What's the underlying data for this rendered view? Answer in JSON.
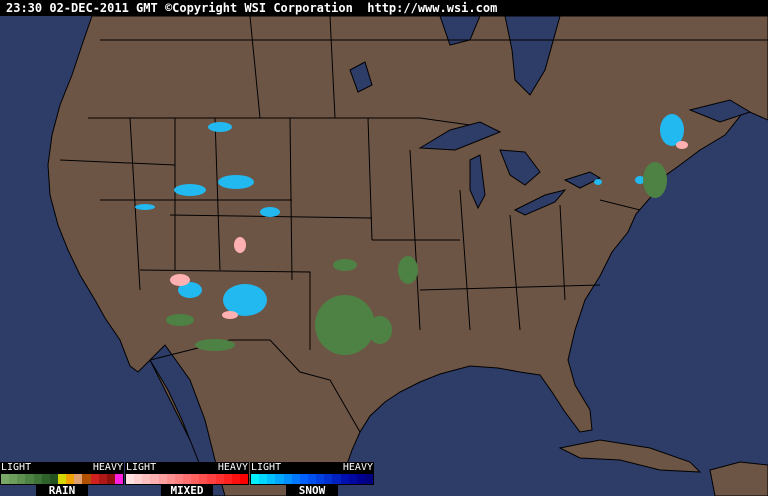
{
  "header": {
    "timestamp": "23:30 02-DEC-2011 GMT",
    "copyright": "©Copyright WSI Corporation",
    "url": "http://www.wsi.com"
  },
  "map": {
    "region": "United States",
    "colors": {
      "land": "#6d5546",
      "water": "#2e3c68",
      "borders": "#000000"
    }
  },
  "legend": [
    {
      "name": "RAIN",
      "light": "LIGHT",
      "heavy": "HEAVY",
      "colors": [
        "#7aa866",
        "#6c9e5c",
        "#5e9050",
        "#4e8244",
        "#3e7236",
        "#2f622a",
        "#225220",
        "#d6d600",
        "#f0a000",
        "#e0a070",
        "#b05000",
        "#d02020",
        "#b01818",
        "#901010",
        "#ff20e0"
      ]
    },
    {
      "name": "MIXED",
      "light": "LIGHT",
      "heavy": "HEAVY",
      "colors": [
        "#ffe0e0",
        "#ffd0d0",
        "#ffc0c0",
        "#ffb0b0",
        "#ffa0a0",
        "#ff9090",
        "#ff8080",
        "#ff7070",
        "#ff6060",
        "#ff5050",
        "#ff4040",
        "#ff3030",
        "#ff2020",
        "#ff1010",
        "#ff0000"
      ]
    },
    {
      "name": "SNOW",
      "light": "LIGHT",
      "heavy": "HEAVY",
      "colors": [
        "#00f0ff",
        "#00d8ff",
        "#00c0ff",
        "#00a8ff",
        "#0090ff",
        "#0078ff",
        "#0060ff",
        "#0050f0",
        "#0040e0",
        "#0030d0",
        "#0020c0",
        "#0010b0",
        "#0008a0",
        "#000090",
        "#000080"
      ]
    }
  ]
}
